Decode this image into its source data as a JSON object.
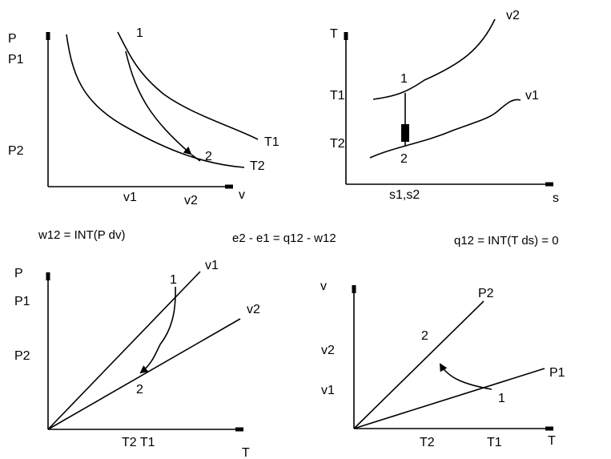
{
  "pv": {
    "y_axis": "P",
    "x_axis": "v",
    "tick_P1": "P1",
    "tick_P2": "P2",
    "tick_v1": "v1",
    "tick_v2": "v2",
    "state1": "1",
    "state2": "2",
    "curve_T1": "T1",
    "curve_T2": "T2"
  },
  "ts": {
    "y_axis": "T",
    "x_axis": "s",
    "tick_T1": "T1",
    "tick_T2": "T2",
    "tick_s": "s1,s2",
    "state1": "1",
    "state2": "2",
    "curve_v1": "v1",
    "curve_v2": "v2"
  },
  "pt": {
    "y_axis": "P",
    "x_axis": "T",
    "tick_P1": "P1",
    "tick_P2": "P2",
    "tick_T": "T2 T1",
    "state1": "1",
    "state2": "2",
    "line_v1": "v1",
    "line_v2": "v2"
  },
  "vt": {
    "y_axis": "v",
    "x_axis": "T",
    "tick_v1": "v1",
    "tick_v2": "v2",
    "tick_T2": "T2",
    "tick_T1": "T1",
    "state1": "1",
    "state2": "2",
    "line_P1": "P1",
    "line_P2": "P2"
  },
  "equations": {
    "work": "w12 = INT(P dv)",
    "energy": "e2 - e1 = q12 - w12",
    "heat": "q12 = INT(T ds) = 0"
  }
}
